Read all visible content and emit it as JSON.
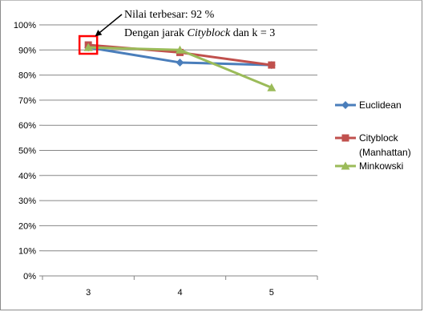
{
  "chart_data": {
    "type": "line",
    "categories": [
      "3",
      "4",
      "5"
    ],
    "ylim": [
      0,
      100
    ],
    "yticks": [
      0,
      10,
      20,
      30,
      40,
      50,
      60,
      70,
      80,
      90,
      100
    ],
    "ytick_labels": [
      "0%",
      "10%",
      "20%",
      "30%",
      "40%",
      "50%",
      "60%",
      "70%",
      "80%",
      "90%",
      "100%"
    ],
    "grid": "horizontal",
    "legend_position": "right",
    "series": [
      {
        "name": "Euclidean",
        "values": [
          91,
          85,
          84
        ],
        "color": "#4a7ebb",
        "marker": "diamond"
      },
      {
        "name": "Cityblock (Manhattan)",
        "name_lines": [
          "Cityblock",
          "(Manhattan)"
        ],
        "values": [
          92,
          89,
          84
        ],
        "color": "#c0504d",
        "marker": "square"
      },
      {
        "name": "Minkowski",
        "values": [
          91,
          90,
          75
        ],
        "color": "#9bbb59",
        "marker": "triangle"
      }
    ],
    "annotation": {
      "line1": "Nilai terbesar: 92 %",
      "line2_prefix": "Dengan jarak ",
      "line2_italic": "Cityblock",
      "line2_suffix": " dan k = 3",
      "highlight_color": "#ff0000",
      "target_category": "3",
      "target_value": 92
    }
  }
}
